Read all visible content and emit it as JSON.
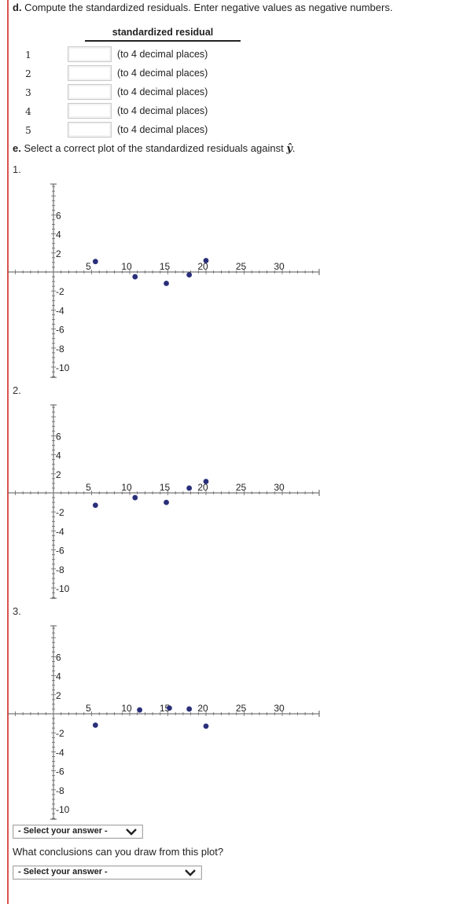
{
  "part_d": {
    "letter": "d.",
    "text": " Compute the standardized residuals. Enter negative values as negative numbers."
  },
  "residual_table": {
    "header": "standardized residual",
    "rows": [
      {
        "num": "1",
        "value": "",
        "note": "(to 4 decimal places)"
      },
      {
        "num": "2",
        "value": "",
        "note": "(to 4 decimal places)"
      },
      {
        "num": "3",
        "value": "",
        "note": "(to 4 decimal places)"
      },
      {
        "num": "4",
        "value": "",
        "note": "(to 4 decimal places)"
      },
      {
        "num": "5",
        "value": "",
        "note": "(to 4 decimal places)"
      }
    ]
  },
  "part_e": {
    "letter": "e.",
    "text": " Select a correct plot of the standardized residuals against ",
    "symbol": "ŷ",
    "end": "."
  },
  "plot_options": [
    {
      "label": "1.",
      "chart_data": {
        "type": "scatter",
        "x_ticks": [
          "5",
          "10",
          "15",
          "20",
          "25",
          "30"
        ],
        "y_ticks": [
          "6",
          "4",
          "2",
          "-2",
          "-4",
          "-6",
          "-8",
          "-10"
        ],
        "xlim": [
          0,
          35
        ],
        "ylim": [
          -11,
          9
        ],
        "points": [
          {
            "x": 5.5,
            "y": 1.1
          },
          {
            "x": 10.7,
            "y": -0.5
          },
          {
            "x": 14.8,
            "y": -1.2
          },
          {
            "x": 17.8,
            "y": -0.3
          },
          {
            "x": 20,
            "y": 1.2
          }
        ]
      }
    },
    {
      "label": "2.",
      "chart_data": {
        "type": "scatter",
        "x_ticks": [
          "5",
          "10",
          "15",
          "20",
          "25",
          "30"
        ],
        "y_ticks": [
          "6",
          "4",
          "2",
          "-2",
          "-4",
          "-6",
          "-8",
          "-10"
        ],
        "xlim": [
          0,
          35
        ],
        "ylim": [
          -11,
          9
        ],
        "points": [
          {
            "x": 5.5,
            "y": -1.3
          },
          {
            "x": 10.7,
            "y": -0.5
          },
          {
            "x": 14.8,
            "y": -1.0
          },
          {
            "x": 17.8,
            "y": 0.5
          },
          {
            "x": 20,
            "y": 1.2
          }
        ]
      }
    },
    {
      "label": "3.",
      "chart_data": {
        "type": "scatter",
        "x_ticks": [
          "5",
          "10",
          "15",
          "20",
          "25",
          "30"
        ],
        "y_ticks": [
          "6",
          "4",
          "2",
          "-2",
          "-4",
          "-6",
          "-8",
          "-10"
        ],
        "xlim": [
          0,
          35
        ],
        "ylim": [
          -11,
          9
        ],
        "points": [
          {
            "x": 5.5,
            "y": -1.2
          },
          {
            "x": 11.3,
            "y": 0.4
          },
          {
            "x": 15.2,
            "y": 0.6
          },
          {
            "x": 17.8,
            "y": 0.5
          },
          {
            "x": 20,
            "y": -1.3
          }
        ]
      }
    }
  ],
  "plot_select": {
    "value": "- Select your answer -"
  },
  "question": {
    "text": "What conclusions can you draw from this plot?"
  },
  "conclusion_select": {
    "value": "- Select your answer -"
  },
  "colors": {
    "point": "#2a2f7a",
    "accent_rule": "#d9534f"
  }
}
